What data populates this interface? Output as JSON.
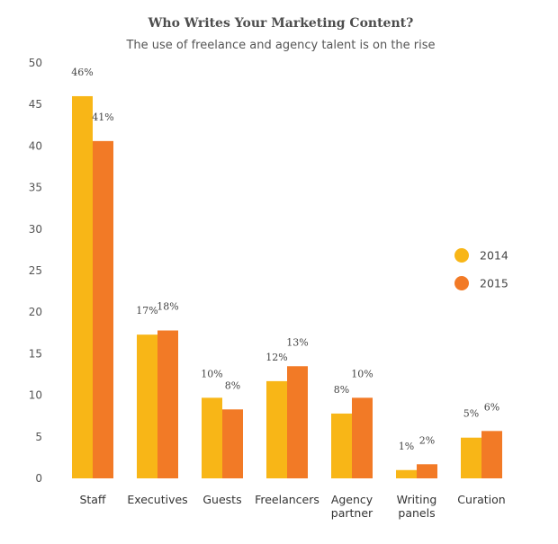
{
  "colors": {
    "series_2014": "#f8b617",
    "series_2015": "#f27a26"
  },
  "chart_data": {
    "type": "bar",
    "title": "Who Writes Your Marketing Content?",
    "subtitle": "The use of freelance and agency talent is on the rise",
    "categories": [
      [
        "Staff"
      ],
      [
        "Executives"
      ],
      [
        "Guests"
      ],
      [
        "Freelancers"
      ],
      [
        "Agency",
        "partner"
      ],
      [
        "Writing",
        "panels"
      ],
      [
        "Curation"
      ]
    ],
    "series": [
      {
        "name": "2014",
        "values": [
          46,
          17.3,
          9.7,
          11.7,
          7.8,
          1,
          4.9
        ],
        "labels": [
          "46%",
          "17%",
          "10%",
          "12%",
          "8%",
          "1%",
          "5%"
        ]
      },
      {
        "name": "2015",
        "values": [
          40.6,
          17.8,
          8.3,
          13.5,
          9.7,
          1.7,
          5.7
        ],
        "labels": [
          "41%",
          "18%",
          "8%",
          "13%",
          "10%",
          "2%",
          "6%"
        ]
      }
    ],
    "ylim": [
      0,
      50
    ],
    "yticks": [
      0,
      5,
      10,
      15,
      20,
      25,
      30,
      35,
      40,
      45,
      50
    ],
    "grid": false,
    "legend_position": "right"
  }
}
